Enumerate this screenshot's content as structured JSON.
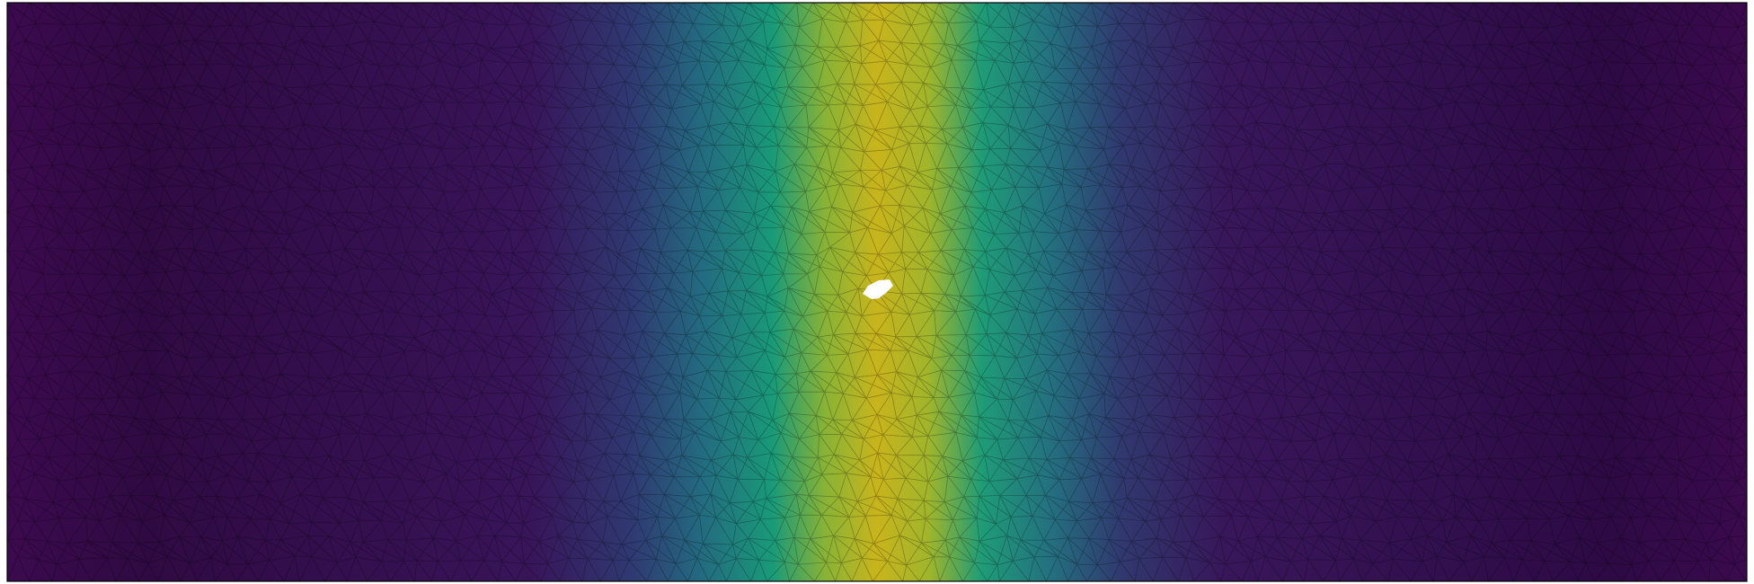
{
  "field": {
    "colormap": "viridis",
    "colormap_stops": [
      "#440154",
      "#3b528b",
      "#21918c",
      "#5ec962",
      "#fde725"
    ],
    "peak_color": "#c9b41c",
    "background_color": "#ffffff",
    "mesh_line_color": "#000000",
    "mesh_type": "triangular",
    "peak_location": "center",
    "hole_at_peak": true,
    "hole_color": "#ffffff",
    "border": true
  }
}
